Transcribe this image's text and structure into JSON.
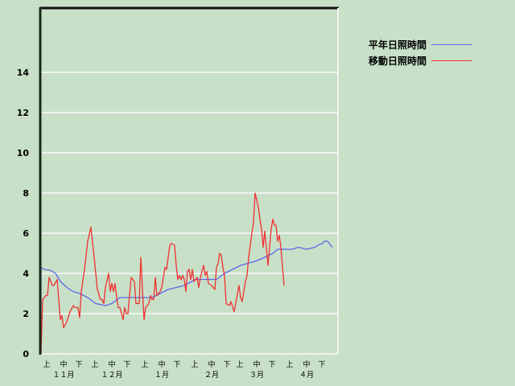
{
  "chart_data": {
    "type": "line",
    "title": "",
    "xlabel": "",
    "ylabel": "",
    "ylim": [
      0,
      17.2
    ],
    "yticks": [
      "0",
      "2",
      "4",
      "6",
      "8",
      "10",
      "12",
      "14"
    ],
    "grid": true,
    "legend_position": "top-right",
    "x_period_labels": [
      "上",
      "中",
      "下"
    ],
    "months": [
      {
        "label": "１１月",
        "month": 11
      },
      {
        "label": "１２月",
        "month": 12
      },
      {
        "label": "１月",
        "month": 1
      },
      {
        "label": "２月",
        "month": 2
      },
      {
        "label": "３月",
        "month": 3
      },
      {
        "label": "４月",
        "month": 4
      }
    ],
    "series": [
      {
        "name": "平年日照時間",
        "color": "#5a68e8",
        "points": [
          [
            "11-01",
            0
          ],
          [
            "11-01",
            4.3
          ],
          [
            "11-03",
            4.2
          ],
          [
            "11-07",
            4.15
          ],
          [
            "11-10",
            4.0
          ],
          [
            "11-13",
            3.6
          ],
          [
            "11-17",
            3.3
          ],
          [
            "11-21",
            3.1
          ],
          [
            "11-25",
            3.0
          ],
          [
            "11-30",
            2.8
          ],
          [
            "12-05",
            2.5
          ],
          [
            "12-11",
            2.4
          ],
          [
            "12-15",
            2.5
          ],
          [
            "12-20",
            2.8
          ],
          [
            "01-09",
            2.8
          ],
          [
            "01-14",
            3.0
          ],
          [
            "01-19",
            3.2
          ],
          [
            "01-29",
            3.4
          ],
          [
            "02-05",
            3.7
          ],
          [
            "02-18",
            3.7
          ],
          [
            "02-23",
            4.0
          ],
          [
            "02-28",
            4.2
          ],
          [
            "03-05",
            4.4
          ],
          [
            "03-14",
            4.6
          ],
          [
            "03-20",
            4.8
          ],
          [
            "03-25",
            5.0
          ],
          [
            "03-28",
            5.2
          ],
          [
            "04-06",
            5.2
          ],
          [
            "04-10",
            5.3
          ],
          [
            "04-15",
            5.2
          ],
          [
            "04-20",
            5.3
          ],
          [
            "04-22",
            5.4
          ],
          [
            "04-25",
            5.5
          ],
          [
            "04-26",
            5.6
          ],
          [
            "04-28",
            5.6
          ],
          [
            "04-30",
            5.4
          ],
          [
            "05-01",
            5.3
          ]
        ]
      },
      {
        "name": "移動日照時間",
        "color": "#f03030",
        "points": [
          [
            "11-01",
            0
          ],
          [
            "11-02",
            2.7
          ],
          [
            "11-04",
            2.9
          ],
          [
            "11-05",
            2.9
          ],
          [
            "11-06",
            3.8
          ],
          [
            "11-08",
            3.4
          ],
          [
            "11-09",
            3.4
          ],
          [
            "11-11",
            3.7
          ],
          [
            "11-13",
            1.7
          ],
          [
            "11-14",
            1.9
          ],
          [
            "11-15",
            1.3
          ],
          [
            "11-17",
            1.6
          ],
          [
            "11-19",
            2.1
          ],
          [
            "11-21",
            2.4
          ],
          [
            "11-22",
            2.3
          ],
          [
            "11-24",
            2.3
          ],
          [
            "11-25",
            1.8
          ],
          [
            "11-26",
            3.1
          ],
          [
            "11-28",
            4.2
          ],
          [
            "11-30",
            5.6
          ],
          [
            "12-02",
            6.3
          ],
          [
            "12-04",
            4.8
          ],
          [
            "12-06",
            3.2
          ],
          [
            "12-08",
            2.7
          ],
          [
            "12-09",
            2.7
          ],
          [
            "12-10",
            2.5
          ],
          [
            "12-11",
            3.3
          ],
          [
            "12-13",
            4.0
          ],
          [
            "12-14",
            3.1
          ],
          [
            "12-15",
            3.5
          ],
          [
            "12-16",
            3.1
          ],
          [
            "12-17",
            3.5
          ],
          [
            "12-18",
            2.8
          ],
          [
            "12-19",
            2.3
          ],
          [
            "12-20",
            2.3
          ],
          [
            "12-22",
            1.7
          ],
          [
            "12-23",
            2.3
          ],
          [
            "12-24",
            2.0
          ],
          [
            "12-25",
            2.0
          ],
          [
            "12-26",
            2.9
          ],
          [
            "12-27",
            3.8
          ],
          [
            "12-29",
            3.6
          ],
          [
            "12-30",
            2.5
          ],
          [
            "01-01",
            2.5
          ],
          [
            "01-02",
            4.8
          ],
          [
            "01-03",
            3.2
          ],
          [
            "01-04",
            1.7
          ],
          [
            "01-05",
            2.3
          ],
          [
            "01-06",
            2.4
          ],
          [
            "01-07",
            2.5
          ],
          [
            "01-08",
            2.9
          ],
          [
            "01-09",
            2.7
          ],
          [
            "01-10",
            2.7
          ],
          [
            "01-11",
            3.8
          ],
          [
            "01-12",
            2.9
          ],
          [
            "01-14",
            3.1
          ],
          [
            "01-15",
            3.3
          ],
          [
            "01-17",
            4.3
          ],
          [
            "01-18",
            4.2
          ],
          [
            "01-19",
            4.8
          ],
          [
            "01-20",
            5.4
          ],
          [
            "01-21",
            5.5
          ],
          [
            "01-23",
            5.4
          ],
          [
            "01-24",
            4.4
          ],
          [
            "01-25",
            3.7
          ],
          [
            "01-26",
            3.9
          ],
          [
            "01-27",
            3.7
          ],
          [
            "01-28",
            3.9
          ],
          [
            "01-29",
            3.7
          ],
          [
            "01-30",
            3.1
          ],
          [
            "01-31",
            4.1
          ],
          [
            "02-01",
            4.2
          ],
          [
            "02-02",
            3.7
          ],
          [
            "02-03",
            4.2
          ],
          [
            "02-04",
            3.6
          ],
          [
            "02-06",
            3.8
          ],
          [
            "02-07",
            3.3
          ],
          [
            "02-08",
            3.8
          ],
          [
            "02-10",
            4.4
          ],
          [
            "02-11",
            3.9
          ],
          [
            "02-12",
            4.1
          ],
          [
            "02-13",
            3.5
          ],
          [
            "02-15",
            3.4
          ],
          [
            "02-17",
            3.2
          ],
          [
            "02-18",
            4.3
          ],
          [
            "02-19",
            4.5
          ],
          [
            "02-20",
            5.0
          ],
          [
            "02-21",
            4.9
          ],
          [
            "02-22",
            4.3
          ],
          [
            "02-23",
            3.9
          ],
          [
            "02-24",
            2.5
          ],
          [
            "02-26",
            2.4
          ],
          [
            "02-27",
            2.6
          ],
          [
            "03-01",
            2.1
          ],
          [
            "03-04",
            3.4
          ],
          [
            "03-05",
            2.8
          ],
          [
            "03-06",
            2.6
          ],
          [
            "03-08",
            3.6
          ],
          [
            "03-09",
            3.9
          ],
          [
            "03-10",
            4.8
          ],
          [
            "03-12",
            6.0
          ],
          [
            "03-13",
            6.5
          ],
          [
            "03-14",
            8.0
          ],
          [
            "03-16",
            7.3
          ],
          [
            "03-17",
            6.7
          ],
          [
            "03-18",
            6.2
          ],
          [
            "03-19",
            5.3
          ],
          [
            "03-20",
            6.1
          ],
          [
            "03-22",
            4.4
          ],
          [
            "03-23",
            5.3
          ],
          [
            "03-24",
            6.2
          ],
          [
            "03-25",
            6.7
          ],
          [
            "03-26",
            6.4
          ],
          [
            "03-27",
            6.4
          ],
          [
            "03-28",
            5.6
          ],
          [
            "03-29",
            5.9
          ],
          [
            "03-30",
            5.3
          ],
          [
            "04-01",
            3.4
          ]
        ]
      }
    ]
  }
}
